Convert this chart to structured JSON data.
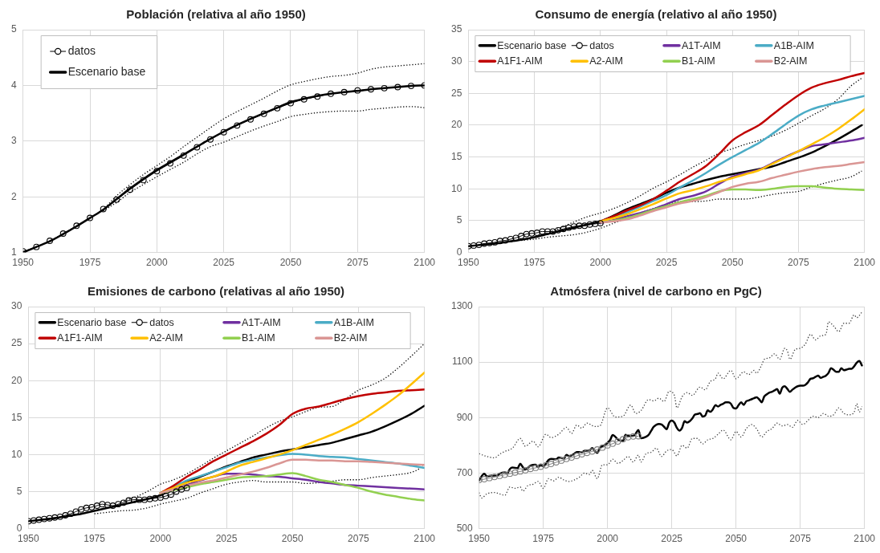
{
  "chart_data": [
    {
      "type": "line",
      "title": "Población (relativa al año 1950)",
      "xlim": [
        1950,
        2100
      ],
      "xticks": [
        1950,
        1975,
        2000,
        2025,
        2050,
        2075,
        2100
      ],
      "ylim": [
        1,
        5
      ],
      "yticks": [
        1,
        2,
        3,
        4,
        5
      ],
      "grid": true,
      "legend": "top left",
      "series": [
        {
          "name": "datos",
          "color": "#000000",
          "marker": "circle",
          "x": [
            1950,
            1955,
            1960,
            1965,
            1970,
            1975,
            1980,
            1985,
            1990,
            1995,
            2000,
            2005,
            2010,
            2015,
            2020,
            2025,
            2030,
            2035,
            2040,
            2045,
            2050,
            2055,
            2060,
            2065,
            2070,
            2075,
            2080,
            2085,
            2090,
            2095,
            2100
          ],
          "values": [
            1.02,
            1.1,
            1.21,
            1.34,
            1.48,
            1.62,
            1.78,
            1.95,
            2.13,
            2.3,
            2.46,
            2.6,
            2.74,
            2.89,
            3.03,
            3.16,
            3.28,
            3.39,
            3.49,
            3.59,
            3.68,
            3.75,
            3.8,
            3.85,
            3.88,
            3.91,
            3.93,
            3.95,
            3.97,
            3.99,
            4.0
          ]
        },
        {
          "name": "Escenario base",
          "color": "#000000",
          "x": [
            1950,
            1955,
            1960,
            1965,
            1970,
            1975,
            1980,
            1985,
            1990,
            1995,
            2000,
            2005,
            2010,
            2015,
            2020,
            2025,
            2030,
            2035,
            2040,
            2045,
            2050,
            2055,
            2060,
            2065,
            2070,
            2075,
            2080,
            2085,
            2090,
            2095,
            2100
          ],
          "values": [
            1.0,
            1.1,
            1.2,
            1.33,
            1.47,
            1.62,
            1.77,
            1.96,
            2.15,
            2.32,
            2.48,
            2.62,
            2.76,
            2.9,
            3.04,
            3.17,
            3.29,
            3.4,
            3.5,
            3.6,
            3.7,
            3.76,
            3.81,
            3.85,
            3.88,
            3.9,
            3.93,
            3.95,
            3.97,
            3.99,
            4.0
          ]
        },
        {
          "color": "#000000",
          "line_style": "dotted",
          "x": [
            1980,
            1985,
            1990,
            1995,
            2000,
            2005,
            2010,
            2015,
            2020,
            2025,
            2030,
            2035,
            2040,
            2045,
            2050,
            2055,
            2060,
            2065,
            2070,
            2075,
            2080,
            2085,
            2090,
            2095,
            2100
          ],
          "values": [
            1.77,
            2.02,
            2.22,
            2.4,
            2.56,
            2.72,
            2.9,
            3.07,
            3.24,
            3.4,
            3.53,
            3.65,
            3.77,
            3.9,
            4.01,
            4.07,
            4.12,
            4.16,
            4.18,
            4.22,
            4.29,
            4.33,
            4.35,
            4.37,
            4.39
          ]
        },
        {
          "color": "#000000",
          "line_style": "dotted",
          "x": [
            1980,
            1985,
            1990,
            1995,
            2000,
            2005,
            2010,
            2015,
            2020,
            2025,
            2030,
            2035,
            2040,
            2045,
            2050,
            2055,
            2060,
            2065,
            2070,
            2075,
            2080,
            2085,
            2090,
            2095,
            2100
          ],
          "values": [
            1.75,
            1.9,
            2.08,
            2.22,
            2.36,
            2.49,
            2.62,
            2.77,
            2.9,
            2.98,
            3.08,
            3.18,
            3.27,
            3.35,
            3.44,
            3.48,
            3.51,
            3.53,
            3.54,
            3.54,
            3.57,
            3.59,
            3.61,
            3.62,
            3.6
          ]
        }
      ]
    },
    {
      "type": "line",
      "title": "Consumo de energía (relativo al año 1950)",
      "xlim": [
        1950,
        2100
      ],
      "xticks": [
        1950,
        1975,
        2000,
        2025,
        2050,
        2075,
        2100
      ],
      "ylim": [
        0,
        35
      ],
      "yticks": [
        0,
        5,
        10,
        15,
        20,
        25,
        30,
        35
      ],
      "grid": true,
      "legend": "top",
      "series": [
        {
          "name": "Escenario base",
          "color": "#000000",
          "x": [
            1950,
            1955,
            1960,
            1965,
            1970,
            1975,
            1980,
            1985,
            1990,
            1995,
            2000,
            2005,
            2010,
            2015,
            2020,
            2025,
            2030,
            2035,
            2040,
            2045,
            2050,
            2055,
            2060,
            2065,
            2070,
            2075,
            2080,
            2085,
            2090,
            2095,
            2099
          ],
          "values": [
            1.0,
            1.2,
            1.4,
            1.7,
            2.0,
            2.4,
            2.9,
            3.4,
            3.9,
            4.4,
            4.9,
            5.8,
            6.8,
            7.6,
            8.4,
            9.4,
            10.2,
            10.8,
            11.4,
            11.9,
            12.3,
            12.7,
            13.1,
            13.5,
            14.2,
            14.9,
            15.7,
            16.7,
            17.8,
            19.0,
            20.0
          ]
        },
        {
          "name": "datos",
          "color": "#000000",
          "marker": "circle",
          "x": [
            1950,
            1952,
            1954,
            1956,
            1958,
            1960,
            1962,
            1964,
            1966,
            1968,
            1970,
            1972,
            1974,
            1976,
            1978,
            1980,
            1982,
            1984,
            1986,
            1988,
            1990,
            1992,
            1994,
            1996,
            1998,
            2000
          ],
          "values": [
            1.0,
            1.1,
            1.2,
            1.4,
            1.5,
            1.6,
            1.8,
            1.9,
            2.1,
            2.3,
            2.6,
            2.9,
            3.0,
            3.1,
            3.3,
            3.3,
            3.3,
            3.5,
            3.7,
            3.9,
            4.1,
            4.2,
            4.2,
            4.4,
            4.5,
            4.6
          ]
        },
        {
          "name": "A1T-AIM",
          "color": "#7030a0",
          "x": [
            2000,
            2005,
            2010,
            2015,
            2020,
            2025,
            2030,
            2035,
            2040,
            2045,
            2050,
            2055,
            2060,
            2065,
            2070,
            2075,
            2080,
            2085,
            2090,
            2095,
            2100
          ],
          "values": [
            4.6,
            5.1,
            5.7,
            6.2,
            6.8,
            7.6,
            8.4,
            8.9,
            9.6,
            10.8,
            11.9,
            12.5,
            13.0,
            14.0,
            15.0,
            15.9,
            16.7,
            17.0,
            17.3,
            17.6,
            18.0
          ]
        },
        {
          "name": "A1B-AIM",
          "color": "#4bacc6",
          "x": [
            2000,
            2005,
            2010,
            2015,
            2020,
            2025,
            2030,
            2035,
            2040,
            2045,
            2050,
            2055,
            2060,
            2065,
            2070,
            2075,
            2080,
            2085,
            2090,
            2095,
            2100
          ],
          "values": [
            4.9,
            5.6,
            6.3,
            7.2,
            8.1,
            9.0,
            10.2,
            11.3,
            12.5,
            13.8,
            15.0,
            16.1,
            17.2,
            18.6,
            20.1,
            21.5,
            22.5,
            23.1,
            23.6,
            24.1,
            24.6
          ]
        },
        {
          "name": "A1F1-AIM",
          "color": "#c00000",
          "x": [
            2000,
            2005,
            2010,
            2015,
            2020,
            2025,
            2030,
            2035,
            2040,
            2045,
            2050,
            2055,
            2060,
            2065,
            2070,
            2075,
            2080,
            2085,
            2090,
            2095,
            2100
          ],
          "values": [
            4.9,
            5.7,
            6.6,
            7.4,
            8.4,
            9.7,
            11.1,
            12.3,
            13.6,
            15.5,
            17.6,
            18.9,
            20.0,
            21.6,
            23.2,
            24.7,
            25.9,
            26.6,
            27.1,
            27.7,
            28.2
          ]
        },
        {
          "name": "A2-AIM",
          "color": "#ffc000",
          "x": [
            2000,
            2005,
            2010,
            2015,
            2020,
            2025,
            2030,
            2035,
            2040,
            2045,
            2050,
            2055,
            2060,
            2065,
            2070,
            2075,
            2080,
            2085,
            2090,
            2095,
            2100
          ],
          "values": [
            4.9,
            5.4,
            6.0,
            6.8,
            7.6,
            8.5,
            9.3,
            9.8,
            10.4,
            11.1,
            11.7,
            12.3,
            12.9,
            13.9,
            14.9,
            15.9,
            17.0,
            18.1,
            19.4,
            20.9,
            22.5
          ]
        },
        {
          "name": "B1-AIM",
          "color": "#92d050",
          "x": [
            2000,
            2005,
            2010,
            2015,
            2020,
            2025,
            2030,
            2035,
            2040,
            2045,
            2050,
            2055,
            2060,
            2065,
            2070,
            2075,
            2080,
            2085,
            2090,
            2095,
            2100
          ],
          "values": [
            4.7,
            5.0,
            5.4,
            6.0,
            6.7,
            7.3,
            7.9,
            8.4,
            8.9,
            9.6,
            9.9,
            9.9,
            9.8,
            10.0,
            10.3,
            10.4,
            10.4,
            10.2,
            10.0,
            9.9,
            9.8
          ]
        },
        {
          "name": "B2-AIM",
          "color": "#da9694",
          "x": [
            2000,
            2005,
            2010,
            2015,
            2020,
            2025,
            2030,
            2035,
            2040,
            2045,
            2050,
            2055,
            2060,
            2065,
            2070,
            2075,
            2080,
            2085,
            2090,
            2095,
            2100
          ],
          "values": [
            4.7,
            4.9,
            5.2,
            5.8,
            6.5,
            7.1,
            7.7,
            8.1,
            8.7,
            9.5,
            10.3,
            10.8,
            11.1,
            11.7,
            12.2,
            12.7,
            13.1,
            13.4,
            13.6,
            13.9,
            14.2
          ]
        },
        {
          "color": "#000000",
          "line_style": "dotted",
          "x": [
            1970,
            1975,
            1980,
            1985,
            1990,
            1995,
            2000,
            2005,
            2010,
            2015,
            2020,
            2025,
            2030,
            2035,
            2040,
            2045,
            2050,
            2055,
            2060,
            2065,
            2070,
            2075,
            2080,
            2085,
            2090,
            2095,
            2099
          ],
          "values": [
            2.0,
            2.4,
            3.1,
            3.9,
            4.8,
            5.6,
            6.2,
            6.9,
            7.8,
            8.9,
            10.1,
            11.1,
            12.2,
            13.4,
            14.5,
            15.6,
            16.3,
            17.0,
            17.6,
            18.3,
            19.2,
            20.3,
            21.5,
            22.6,
            24.1,
            26.2,
            27.4
          ]
        },
        {
          "color": "#000000",
          "line_style": "dotted",
          "x": [
            1970,
            1975,
            1980,
            1985,
            1990,
            1995,
            2000,
            2005,
            2010,
            2015,
            2020,
            2025,
            2030,
            2035,
            2040,
            2045,
            2050,
            2055,
            2060,
            2065,
            2070,
            2075,
            2080,
            2085,
            2090,
            2095,
            2099
          ],
          "values": [
            1.9,
            2.1,
            2.4,
            2.6,
            2.8,
            3.2,
            3.8,
            4.6,
            5.4,
            6.2,
            6.9,
            7.5,
            8.0,
            8.0,
            8.1,
            8.4,
            8.4,
            8.4,
            8.7,
            9.1,
            9.4,
            9.6,
            10.3,
            10.9,
            11.4,
            11.9,
            12.8
          ]
        }
      ]
    },
    {
      "type": "line",
      "title": "Emisiones de carbono (relativas al año 1950)",
      "xlim": [
        1950,
        2100
      ],
      "xticks": [
        1950,
        1975,
        2000,
        2025,
        2050,
        2075,
        2100
      ],
      "ylim": [
        0,
        30
      ],
      "yticks": [
        0,
        5,
        10,
        15,
        20,
        25,
        30
      ],
      "grid": true,
      "legend": "top",
      "series": [
        {
          "name": "Escenario base",
          "color": "#000000",
          "x": [
            1950,
            1955,
            1960,
            1965,
            1970,
            1975,
            1980,
            1985,
            1990,
            1995,
            2000,
            2005,
            2010,
            2015,
            2020,
            2025,
            2030,
            2035,
            2040,
            2045,
            2050,
            2055,
            2060,
            2065,
            2070,
            2075,
            2080,
            2085,
            2090,
            2095,
            2100
          ],
          "values": [
            1.0,
            1.2,
            1.4,
            1.7,
            2.0,
            2.4,
            2.8,
            3.2,
            3.6,
            4.0,
            4.5,
            5.4,
            6.3,
            7.0,
            7.7,
            8.4,
            9.0,
            9.6,
            10.0,
            10.4,
            10.7,
            11.0,
            11.3,
            11.6,
            12.1,
            12.6,
            13.1,
            13.8,
            14.6,
            15.5,
            16.6
          ]
        },
        {
          "name": "datos",
          "color": "#000000",
          "marker": "circle",
          "x": [
            1950,
            1952,
            1954,
            1956,
            1958,
            1960,
            1962,
            1964,
            1966,
            1968,
            1970,
            1972,
            1974,
            1976,
            1978,
            1980,
            1982,
            1984,
            1986,
            1988,
            1990,
            1992,
            1994,
            1996,
            1998,
            2000,
            2002,
            2004,
            2006,
            2008,
            2010
          ],
          "values": [
            1.0,
            1.1,
            1.2,
            1.3,
            1.4,
            1.5,
            1.6,
            1.8,
            2.0,
            2.3,
            2.6,
            2.8,
            2.9,
            3.1,
            3.3,
            3.2,
            3.1,
            3.3,
            3.5,
            3.8,
            3.9,
            3.9,
            3.9,
            4.0,
            4.1,
            4.2,
            4.4,
            4.6,
            5.0,
            5.3,
            5.5
          ]
        },
        {
          "name": "A1T-AIM",
          "color": "#7030a0",
          "x": [
            2000,
            2005,
            2010,
            2015,
            2020,
            2025,
            2030,
            2035,
            2040,
            2045,
            2050,
            2055,
            2060,
            2065,
            2070,
            2075,
            2080,
            2085,
            2090,
            2095,
            2100
          ],
          "values": [
            4.8,
            5.4,
            5.9,
            6.5,
            7.0,
            7.4,
            7.4,
            7.3,
            7.1,
            7.0,
            6.8,
            6.6,
            6.3,
            6.1,
            5.9,
            5.8,
            5.7,
            5.6,
            5.5,
            5.4,
            5.3
          ]
        },
        {
          "name": "A1B-AIM",
          "color": "#4bacc6",
          "x": [
            2000,
            2005,
            2010,
            2015,
            2020,
            2025,
            2030,
            2035,
            2040,
            2045,
            2050,
            2055,
            2060,
            2065,
            2070,
            2075,
            2080,
            2085,
            2090,
            2095,
            2100
          ],
          "values": [
            4.8,
            5.6,
            6.5,
            7.1,
            7.7,
            8.3,
            8.9,
            9.3,
            9.6,
            9.9,
            10.1,
            10.0,
            9.8,
            9.7,
            9.6,
            9.4,
            9.2,
            9.0,
            8.8,
            8.5,
            8.2
          ]
        },
        {
          "name": "A1F1-AIM",
          "color": "#c00000",
          "x": [
            2000,
            2005,
            2010,
            2015,
            2020,
            2025,
            2030,
            2035,
            2040,
            2045,
            2050,
            2055,
            2060,
            2065,
            2070,
            2075,
            2080,
            2085,
            2090,
            2095,
            2100
          ],
          "values": [
            4.8,
            5.8,
            7.0,
            8.0,
            9.1,
            10.0,
            10.9,
            11.8,
            12.8,
            14.0,
            15.5,
            16.2,
            16.5,
            17.0,
            17.5,
            17.9,
            18.2,
            18.4,
            18.6,
            18.7,
            18.8
          ]
        },
        {
          "name": "A2-AIM",
          "color": "#ffc000",
          "x": [
            2000,
            2005,
            2010,
            2015,
            2020,
            2025,
            2030,
            2035,
            2040,
            2045,
            2050,
            2055,
            2060,
            2065,
            2070,
            2075,
            2080,
            2085,
            2090,
            2095,
            2100
          ],
          "values": [
            4.8,
            5.5,
            6.2,
            6.6,
            7.0,
            7.7,
            8.5,
            9.0,
            9.5,
            10.0,
            10.6,
            11.3,
            12.0,
            12.7,
            13.5,
            14.4,
            15.5,
            16.7,
            18.0,
            19.5,
            21.1
          ]
        },
        {
          "name": "B1-AIM",
          "color": "#92d050",
          "x": [
            2000,
            2005,
            2010,
            2015,
            2020,
            2025,
            2030,
            2035,
            2040,
            2045,
            2050,
            2055,
            2060,
            2065,
            2070,
            2075,
            2080,
            2085,
            2090,
            2095,
            2100
          ],
          "values": [
            4.8,
            5.2,
            5.6,
            6.0,
            6.3,
            6.6,
            6.9,
            7.0,
            7.1,
            7.3,
            7.5,
            7.1,
            6.6,
            6.3,
            5.9,
            5.5,
            5.0,
            4.6,
            4.3,
            4.0,
            3.8
          ]
        },
        {
          "name": "B2-AIM",
          "color": "#da9694",
          "x": [
            2000,
            2005,
            2010,
            2015,
            2020,
            2025,
            2030,
            2035,
            2040,
            2045,
            2050,
            2055,
            2060,
            2065,
            2070,
            2075,
            2080,
            2085,
            2090,
            2095,
            2100
          ],
          "values": [
            4.8,
            5.3,
            5.8,
            6.2,
            6.5,
            6.9,
            7.3,
            7.7,
            8.2,
            8.8,
            9.3,
            9.3,
            9.2,
            9.2,
            9.1,
            9.1,
            9.0,
            8.9,
            8.8,
            8.7,
            8.6
          ]
        },
        {
          "color": "#000000",
          "line_style": "dotted",
          "x": [
            1985,
            1990,
            1995,
            2000,
            2005,
            2010,
            2015,
            2020,
            2025,
            2030,
            2035,
            2040,
            2045,
            2050,
            2055,
            2060,
            2065,
            2070,
            2075,
            2080,
            2085,
            2090,
            2095,
            2100
          ],
          "values": [
            3.6,
            4.2,
            5.0,
            6.0,
            6.6,
            7.4,
            8.4,
            9.5,
            10.5,
            11.5,
            12.5,
            13.6,
            14.5,
            15.1,
            15.8,
            16.4,
            16.5,
            17.5,
            18.7,
            19.4,
            20.3,
            21.7,
            23.3,
            25.0
          ]
        },
        {
          "color": "#000000",
          "line_style": "dotted",
          "x": [
            1975,
            1980,
            1985,
            1990,
            1995,
            2000,
            2005,
            2010,
            2015,
            2020,
            2025,
            2030,
            2035,
            2040,
            2045,
            2050,
            2055,
            2060,
            2065,
            2070,
            2075,
            2080,
            2085,
            2090,
            2095,
            2098,
            2100
          ],
          "values": [
            2.0,
            2.2,
            2.4,
            2.5,
            2.8,
            3.3,
            3.7,
            4.1,
            4.8,
            5.4,
            6.0,
            6.3,
            6.5,
            6.3,
            6.3,
            6.3,
            6.1,
            6.2,
            6.4,
            6.6,
            6.6,
            6.9,
            7.1,
            7.3,
            7.6,
            8.1,
            8.8
          ]
        }
      ]
    },
    {
      "type": "line",
      "title": "Atmósfera (nivel de carbono en PgC)",
      "xlim": [
        1950,
        2100
      ],
      "xticks": [
        1950,
        1975,
        2000,
        2025,
        2050,
        2075,
        2100
      ],
      "ylim": [
        500,
        1300
      ],
      "yticks": [
        500,
        700,
        900,
        1100,
        1300
      ],
      "grid": true,
      "series": [
        {
          "color": "#7f7f7f",
          "marker": "circle",
          "x": [
            1950,
            1952,
            1954,
            1956,
            1958,
            1960,
            1962,
            1964,
            1966,
            1968,
            1970,
            1972,
            1974,
            1976,
            1978,
            1980,
            1982,
            1984,
            1986,
            1988,
            1990,
            1992,
            1994,
            1996,
            1998,
            2000,
            2002,
            2004,
            2006,
            2008,
            2010,
            2012
          ],
          "values": [
            675,
            678,
            682,
            686,
            690,
            694,
            698,
            702,
            706,
            710,
            715,
            719,
            723,
            728,
            733,
            739,
            745,
            751,
            756,
            762,
            768,
            773,
            778,
            785,
            792,
            800,
            806,
            814,
            822,
            829,
            832,
            833
          ]
        },
        {
          "color": "#000000",
          "x": [
            1950,
            1952,
            1953,
            1955,
            1957,
            1958,
            1960,
            1961,
            1962,
            1963,
            1965,
            1966,
            1967,
            1968,
            1970,
            1972,
            1973,
            1974,
            1975,
            1977,
            1978,
            1980,
            1981,
            1983,
            1984,
            1985,
            1987,
            1988,
            1990,
            1991,
            1993,
            1994,
            1995,
            1996,
            1997,
            1999,
            2000,
            2001,
            2002,
            2003,
            2004,
            2005,
            2006,
            2007,
            2008,
            2010,
            2011,
            2012,
            2013,
            2015,
            2016,
            2017,
            2018,
            2020,
            2021,
            2022,
            2023,
            2024,
            2025,
            2026,
            2027,
            2028,
            2029,
            2030,
            2031,
            2032,
            2033,
            2034,
            2035,
            2036,
            2037,
            2038,
            2039,
            2040,
            2041,
            2042,
            2043,
            2044,
            2045,
            2046,
            2047,
            2048,
            2049,
            2050,
            2051,
            2052,
            2053,
            2054,
            2055,
            2056,
            2057,
            2058,
            2059,
            2060,
            2061,
            2062,
            2063,
            2064,
            2065,
            2066,
            2067,
            2068,
            2069,
            2070,
            2071,
            2072,
            2073,
            2074,
            2075,
            2076,
            2077,
            2078,
            2079,
            2080,
            2081,
            2082,
            2083,
            2084,
            2085,
            2086,
            2087,
            2088,
            2089,
            2090,
            2091,
            2092,
            2093,
            2094,
            2095,
            2096,
            2097,
            2098,
            2099
          ],
          "values": [
            674,
            698,
            689,
            691,
            691,
            698,
            703,
            700,
            715,
            720,
            718,
            734,
            722,
            713,
            727,
            730,
            722,
            730,
            724,
            747,
            751,
            750,
            756,
            753,
            766,
            761,
            769,
            776,
            776,
            780,
            782,
            790,
            780,
            773,
            790,
            802,
            809,
            819,
            837,
            831,
            821,
            817,
            816,
            838,
            834,
            834,
            843,
            855,
            826,
            831,
            838,
            853,
            867,
            877,
            875,
            867,
            858,
            882,
            889,
            882,
            863,
            853,
            863,
            887,
            882,
            887,
            897,
            911,
            913,
            916,
            904,
            907,
            926,
            921,
            930,
            945,
            940,
            946,
            950,
            955,
            955,
            950,
            935,
            933,
            945,
            955,
            946,
            959,
            962,
            966,
            970,
            973,
            966,
            955,
            976,
            984,
            990,
            993,
            998,
            1003,
            986,
            1008,
            1013,
            1003,
            993,
            1001,
            1008,
            1013,
            1015,
            1015,
            1018,
            1027,
            1040,
            1042,
            1047,
            1051,
            1043,
            1047,
            1051,
            1061,
            1078,
            1072,
            1065,
            1065,
            1078,
            1071,
            1073,
            1076,
            1076,
            1085,
            1098,
            1104,
            1088
          ]
        },
        {
          "color": "#404040",
          "line_style": "dotted",
          "x": [
            1950,
            1953,
            1956,
            1958,
            1960,
            1963,
            1966,
            1968,
            1971,
            1973,
            1976,
            1978,
            1981,
            1984,
            1986,
            1988,
            1990,
            1992,
            1995,
            1997,
            2000,
            2003,
            2006,
            2009,
            2011,
            2013,
            2016,
            2018,
            2020,
            2022,
            2024,
            2026,
            2027,
            2029,
            2031,
            2033,
            2036,
            2038,
            2040,
            2042,
            2043,
            2045,
            2048,
            2050,
            2053,
            2055,
            2057,
            2058,
            2060,
            2061,
            2063,
            2065,
            2067,
            2069,
            2070,
            2071,
            2073,
            2075,
            2077,
            2079,
            2081,
            2083,
            2085,
            2086,
            2088,
            2090,
            2092,
            2094,
            2096,
            2097,
            2099
          ],
          "values": [
            770,
            760,
            755,
            768,
            778,
            790,
            825,
            797,
            815,
            795,
            840,
            828,
            840,
            865,
            843,
            873,
            862,
            880,
            868,
            870,
            935,
            902,
            905,
            945,
            915,
            925,
            965,
            960,
            970,
            958,
            995,
            980,
            935,
            975,
            990,
            980,
            1010,
            1000,
            1030,
            1040,
            1060,
            1040,
            1070,
            1040,
            1065,
            1055,
            1070,
            1060,
            1090,
            1110,
            1115,
            1130,
            1110,
            1150,
            1140,
            1110,
            1145,
            1150,
            1165,
            1200,
            1180,
            1195,
            1200,
            1245,
            1230,
            1210,
            1240,
            1240,
            1270,
            1260,
            1280
          ]
        },
        {
          "color": "#404040",
          "line_style": "dotted",
          "x": [
            1950,
            1951,
            1953,
            1956,
            1958,
            1960,
            1962,
            1964,
            1966,
            1967,
            1969,
            1971,
            1973,
            1975,
            1977,
            1979,
            1981,
            1983,
            1985,
            1987,
            1989,
            1991,
            1993,
            1994,
            1996,
            1998,
            2000,
            2002,
            2004,
            2006,
            2008,
            2010,
            2012,
            2013,
            2015,
            2017,
            2019,
            2021,
            2023,
            2025,
            2027,
            2029,
            2031,
            2033,
            2035,
            2037,
            2039,
            2041,
            2043,
            2045,
            2048,
            2050,
            2052,
            2054,
            2056,
            2058,
            2060,
            2062,
            2064,
            2066,
            2068,
            2070,
            2072,
            2074,
            2076,
            2078,
            2080,
            2082,
            2084,
            2086,
            2088,
            2090,
            2092,
            2094,
            2096,
            2097,
            2098,
            2099
          ],
          "values": [
            630,
            610,
            625,
            630,
            625,
            620,
            650,
            645,
            650,
            635,
            655,
            660,
            670,
            645,
            680,
            672,
            685,
            675,
            670,
            675,
            685,
            700,
            695,
            710,
            680,
            730,
            730,
            750,
            735,
            745,
            760,
            740,
            765,
            740,
            770,
            775,
            790,
            760,
            780,
            785,
            762,
            800,
            790,
            825,
            825,
            805,
            820,
            825,
            840,
            855,
            820,
            850,
            830,
            860,
            875,
            860,
            830,
            850,
            860,
            880,
            870,
            875,
            865,
            890,
            875,
            890,
            905,
            900,
            915,
            905,
            910,
            935,
            915,
            910,
            920,
            950,
            920,
            940
          ]
        }
      ]
    }
  ]
}
